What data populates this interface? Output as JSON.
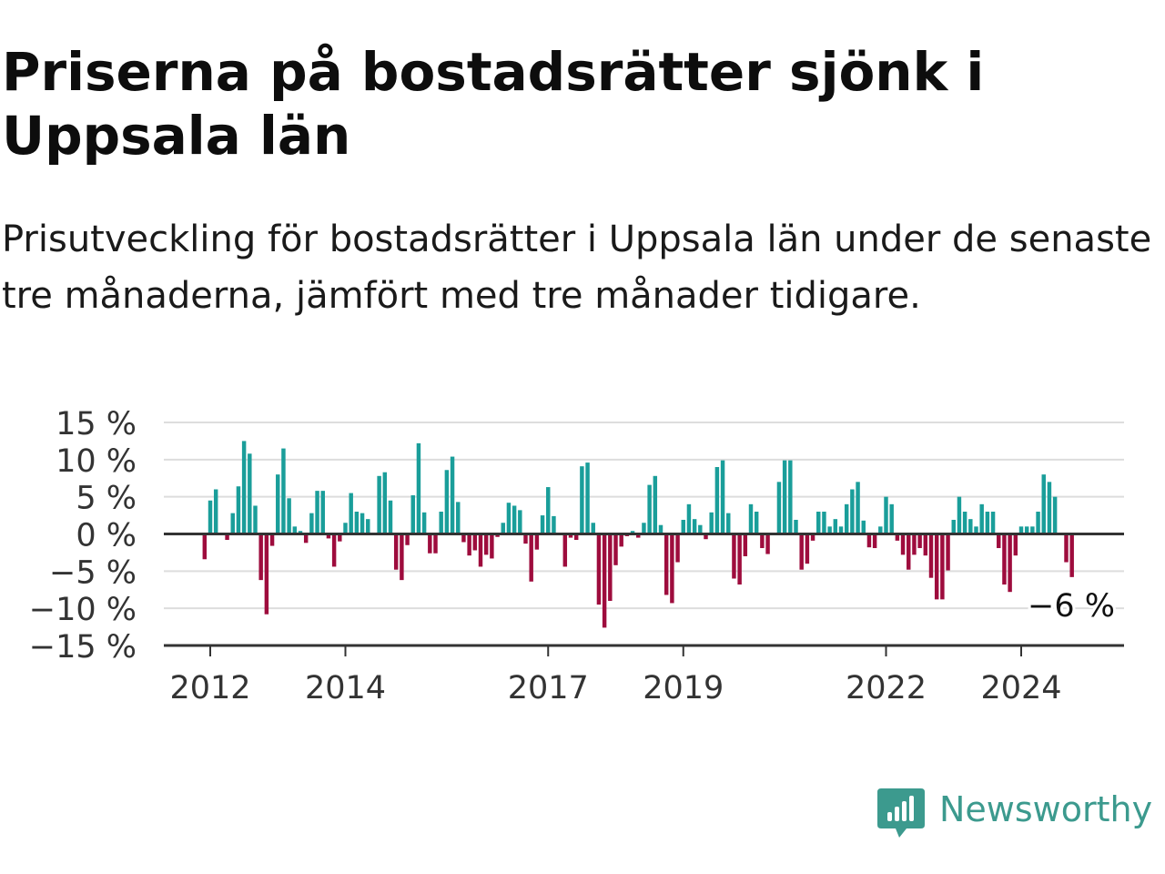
{
  "header": {
    "title": "Priserna på bostadsrätter sjönk i Uppsala län",
    "subtitle": "Prisutveckling för bostadsrätter i Uppsala län under de senaste tre månaderna, jämfört med tre månader tidigare."
  },
  "brand": {
    "name": "Newsworthy",
    "color": "#3c9a8e"
  },
  "chart_data": {
    "type": "bar",
    "x_start": "2011-12",
    "x_step": "month",
    "ylim": [
      -15,
      15
    ],
    "y_ticks": [
      {
        "value": 15,
        "label": "15 %"
      },
      {
        "value": 10,
        "label": "10 %"
      },
      {
        "value": 5,
        "label": "5 %"
      },
      {
        "value": 0,
        "label": "0 %"
      },
      {
        "value": -5,
        "label": "−5 %"
      },
      {
        "value": -10,
        "label": "−10 %"
      },
      {
        "value": -15,
        "label": "−15 %"
      }
    ],
    "x_ticks": [
      {
        "date": "2012-01",
        "label": "2012"
      },
      {
        "date": "2014-01",
        "label": "2014"
      },
      {
        "date": "2017-01",
        "label": "2017"
      },
      {
        "date": "2019-01",
        "label": "2019"
      },
      {
        "date": "2022-01",
        "label": "2022"
      },
      {
        "date": "2024-01",
        "label": "2024"
      }
    ],
    "colors": {
      "positive": "#1a9e9a",
      "negative": "#9e0c3d",
      "grid": "#dddddd",
      "zero": "#333333"
    },
    "annotation": {
      "label": "−6 %"
    },
    "values": [
      -3.4,
      4.5,
      6.0,
      0,
      -0.8,
      2.8,
      6.4,
      12.5,
      10.8,
      3.8,
      -6.2,
      -10.8,
      -1.6,
      8.0,
      11.5,
      4.8,
      1.0,
      0.4,
      -1.2,
      2.8,
      5.8,
      5.8,
      -0.6,
      -4.4,
      -1.0,
      1.5,
      5.5,
      3.0,
      2.8,
      2.0,
      0,
      7.8,
      8.3,
      4.5,
      -4.8,
      -6.2,
      -1.5,
      5.2,
      12.2,
      2.9,
      -2.6,
      -2.6,
      3.0,
      8.6,
      10.4,
      4.3,
      -1.1,
      -2.9,
      -2.2,
      -4.4,
      -2.8,
      -3.3,
      -0.4,
      1.5,
      4.2,
      3.8,
      3.2,
      -1.3,
      -6.4,
      -2.1,
      2.5,
      6.3,
      2.4,
      0,
      -4.4,
      -0.5,
      -0.8,
      9.1,
      9.6,
      1.5,
      -9.5,
      -12.6,
      -9.0,
      -4.2,
      -1.7,
      -0.3,
      0.4,
      -0.5,
      1.5,
      6.6,
      7.8,
      1.2,
      -8.2,
      -9.3,
      -3.8,
      1.9,
      4.0,
      2.0,
      1.2,
      -0.7,
      2.9,
      9.0,
      9.9,
      2.8,
      -6.0,
      -6.8,
      -3.0,
      4.0,
      3.0,
      -1.9,
      -2.7,
      0,
      7.0,
      9.9,
      9.9,
      1.9,
      -4.8,
      -4.0,
      -0.9,
      3.0,
      3.0,
      1.0,
      2.0,
      1.0,
      4.0,
      6.0,
      7.0,
      1.8,
      -1.8,
      -1.9,
      1.0,
      5.0,
      4.0,
      -0.9,
      -2.8,
      -4.8,
      -2.8,
      -1.9,
      -2.9,
      -5.9,
      -8.8,
      -8.8,
      -4.9,
      1.9,
      5.0,
      3.0,
      2.0,
      1.0,
      4.0,
      3.0,
      3.0,
      -1.9,
      -6.8,
      -7.8,
      -2.9,
      1.0,
      1.0,
      1.0,
      3.0,
      8.0,
      7.0,
      5.0,
      0,
      -3.8,
      -5.8
    ]
  }
}
